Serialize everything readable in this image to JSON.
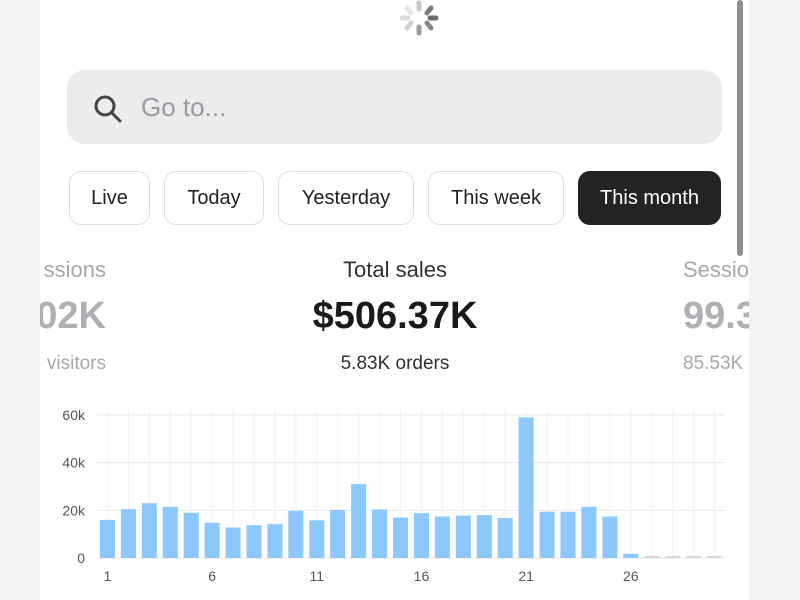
{
  "search": {
    "placeholder": "Go to..."
  },
  "filters": [
    "Live",
    "Today",
    "Yesterday",
    "This week",
    "This month"
  ],
  "active_filter": "This month",
  "metrics": {
    "left": {
      "label": "ssions",
      "value": "02K",
      "sub": "visitors"
    },
    "center": {
      "label": "Total sales",
      "value": "$506.37K",
      "sub": "5.83K orders"
    },
    "right": {
      "label": "Sessio",
      "value": "99.3",
      "sub": "85.53K"
    }
  },
  "colors": {
    "bar": "#8cc8fb",
    "active_pill": "#232326",
    "grid": "#e9e9ec"
  },
  "chart_data": {
    "type": "bar",
    "categories": [
      "1",
      "2",
      "3",
      "4",
      "5",
      "6",
      "7",
      "8",
      "9",
      "10",
      "11",
      "12",
      "13",
      "14",
      "15",
      "16",
      "17",
      "18",
      "19",
      "20",
      "21",
      "22",
      "23",
      "24",
      "25",
      "26",
      "27",
      "28",
      "29",
      "30"
    ],
    "values": [
      16000,
      20500,
      23000,
      21500,
      19000,
      14800,
      12800,
      13800,
      14200,
      19800,
      15800,
      20200,
      31000,
      20400,
      17000,
      18800,
      17400,
      17800,
      18000,
      16800,
      59000,
      19400,
      19400,
      21500,
      17400,
      1800,
      600,
      600,
      600,
      600
    ],
    "x_tick_labels": [
      "1",
      "6",
      "11",
      "16",
      "21",
      "26"
    ],
    "y_tick_labels": [
      "0",
      "20k",
      "40k",
      "60k"
    ],
    "ylim": [
      0,
      60000
    ],
    "grid": true
  }
}
